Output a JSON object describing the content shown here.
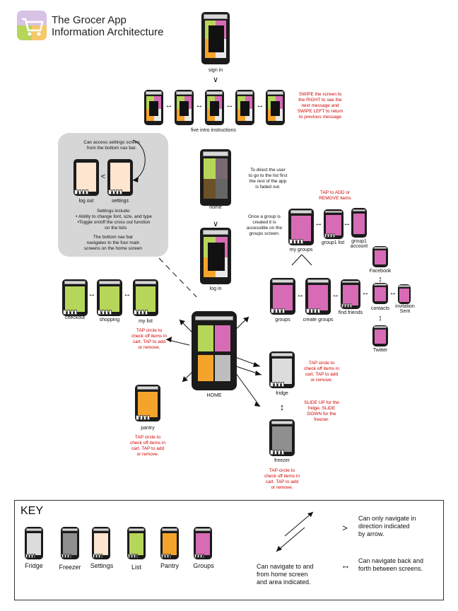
{
  "header": {
    "title_line1": "The Grocer App",
    "title_line2": "Information Architecture"
  },
  "colors": {
    "list": "#b6d65a",
    "pantry": "#f5a42b",
    "groups": "#d86bb5",
    "settings": "#fde5cf",
    "freezer": "#8f8f8f",
    "fridge": "#dcdcdc",
    "text_red": "#d00000"
  },
  "labels": {
    "sign_in": "sign in",
    "five_intro": "five intro instructions",
    "home": "home",
    "log_in": "log in",
    "HOME": "HOME",
    "log_out": "log out",
    "settings": "settings",
    "checkout": "checkout",
    "shopping": "shopping",
    "my_list": "my list",
    "pantry": "pantry",
    "fridge": "fridge",
    "freezer": "freezer",
    "my_groups": "my groups",
    "group1_list": "group1 list",
    "group1_account": "group1\naccount",
    "groups": "groups",
    "create_groups": "create groups",
    "find_friends": "find friends",
    "contacts": "contacts",
    "facebook": "Facebook",
    "twitter": "Twitter",
    "invitation": "invitation\nSent"
  },
  "notes": {
    "swipe": "SWIPE the screen to\nthe RIGHT to see the\nnext message and\nSWIPE LEFT to return\nto previous message",
    "settings_access": "Can access settings screen\nfrom the bottom nav bar.",
    "settings_include": "Settings include:\n• Ability to change font, size, and type\n•Toggle on/off the cross out function\n   on the lists",
    "bottom_nav": "The bottom nav bar\nnavigates to the four main\nscreens on the home screen",
    "direct_user": "To direct the user\nto go to the list first\nthe rest of the app\nis faded out.",
    "tap_add_remove": "TAP to ADD or\nREMOVE items",
    "group_created": "Once a group is\ncreated it is\naccessible on the\ngroups screen.",
    "tap_list": "TAP circle to\ncheck off items in\ncart. TAP to add\nor remove.",
    "tap_pantry": "TAP circle to\ncheck off items in\ncart. TAP to add\nor remove.",
    "tap_fridge": "TAP circle to\ncheck off items in\ncart. TAP to add\nor remove.",
    "slide": "SLIDE UP for the\nfridge, SLIDE\nDOWN for the\nfreezer.",
    "tap_freezer": "TAP circle to\ncheck off items in\ncart. TAP to add\nor remove."
  },
  "key": {
    "title": "KEY",
    "items": [
      "Fridge",
      "Freezer",
      "Settings",
      "List",
      "Pantry",
      "Groups"
    ],
    "home_nav": "Can navigate to and\nfrom home screen\nand area indicated.",
    "one_way": "Can only navigate in\ndirection indicated\nby arrow.",
    "two_way": "Can navigate back and\nforth between screens."
  },
  "glyphs": {
    "double_arrow": "↔",
    "double_vert": "↕",
    "chevron_right": ">",
    "chevron_left": "<",
    "chevron_down": "∨"
  }
}
